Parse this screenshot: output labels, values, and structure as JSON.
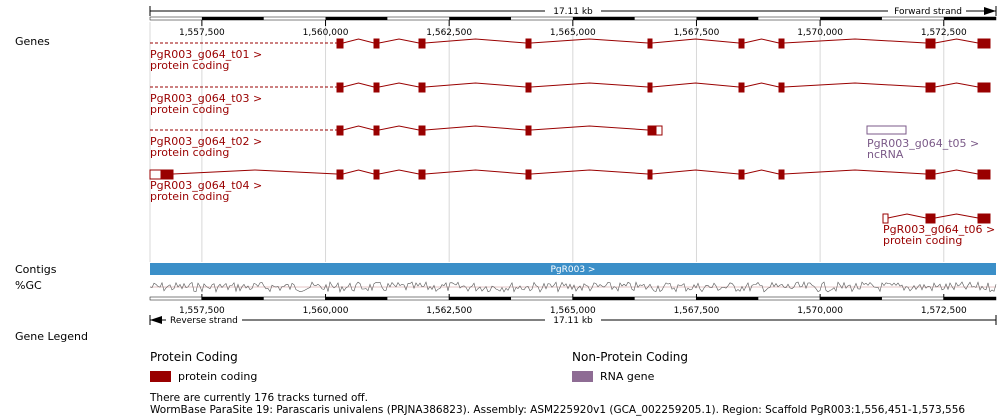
{
  "track_labels": {
    "genes": "Genes",
    "contigs": "Contigs",
    "gc": "%GC",
    "gene_legend": "Gene Legend"
  },
  "top_scale": {
    "length_label": "17.11 kb",
    "strand_label": "Forward strand",
    "ticks": [
      "1,557,500",
      "1,560,000",
      "1,562,500",
      "1,565,000",
      "1,567,500",
      "1,570,000",
      "1,572,500"
    ]
  },
  "bottom_scale": {
    "length_label": "17.11 kb",
    "strand_label": "Reverse strand",
    "ticks": [
      "1,557,500",
      "1,560,000",
      "1,562,500",
      "1,565,000",
      "1,567,500",
      "1,570,000",
      "1,572,500"
    ]
  },
  "region": {
    "start": 1556451,
    "end": 1573556
  },
  "transcripts": [
    {
      "id": "PgR003_g064_t01 >",
      "biotype": "protein coding",
      "color": "#990000"
    },
    {
      "id": "PgR003_g064_t03 >",
      "biotype": "protein coding",
      "color": "#990000"
    },
    {
      "id": "PgR003_g064_t02 >",
      "biotype": "protein coding",
      "color": "#990000"
    },
    {
      "id": "PgR003_g064_t04 >",
      "biotype": "protein coding",
      "color": "#990000"
    },
    {
      "id": "PgR003_g064_t05 >",
      "biotype": "ncRNA",
      "color": "#7b5a88"
    },
    {
      "id": "PgR003_g064_t06 >",
      "biotype": "protein coding",
      "color": "#990000"
    }
  ],
  "contig": {
    "label": "PgR003 >",
    "color": "#3b8fc8"
  },
  "legend": {
    "protein_coding_title": "Protein Coding",
    "protein_coding_item": "protein coding",
    "protein_coding_color": "#990000",
    "non_protein_title": "Non-Protein Coding",
    "non_protein_item": "RNA gene",
    "non_protein_color": "#8e6c94"
  },
  "footer": {
    "tracks_off": "There are currently 176 tracks turned off.",
    "assembly": "WormBase ParaSite 19: Parascaris univalens (PRJNA386823). Assembly: ASM225920v1 (GCA_002259205.1). Region: Scaffold PgR003:1,556,451-1,573,556"
  }
}
